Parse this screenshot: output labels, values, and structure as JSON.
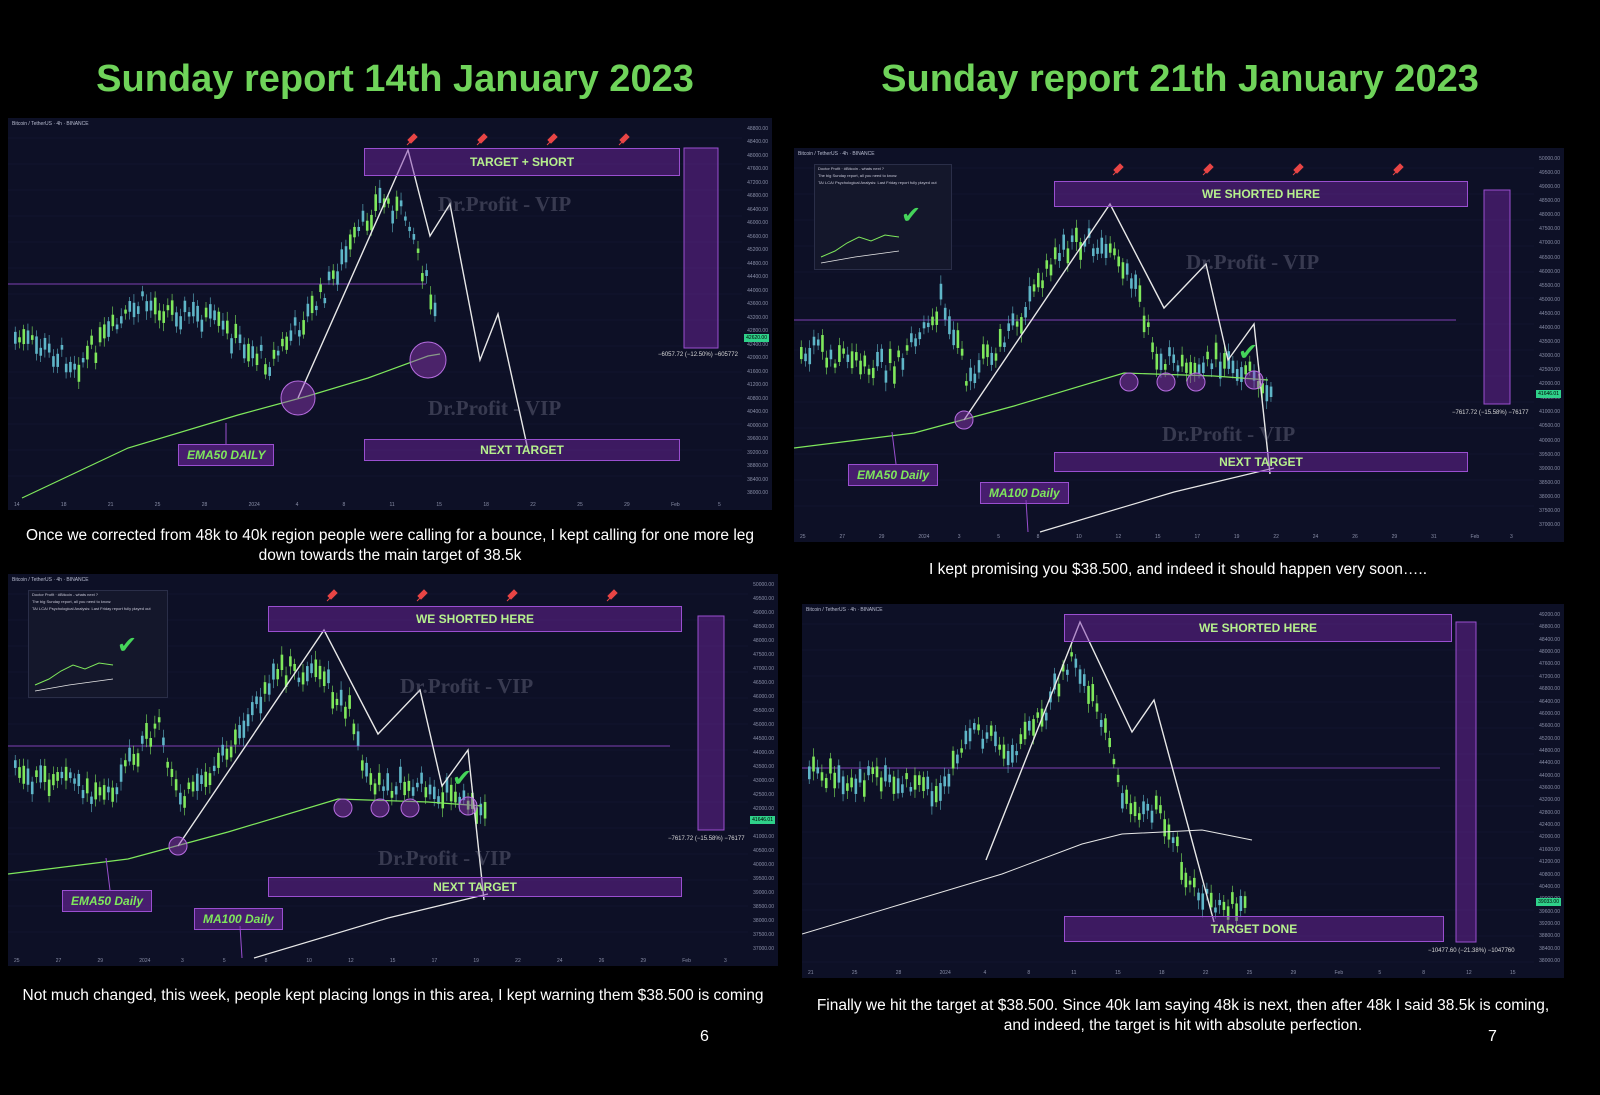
{
  "page": {
    "heading_left": "Sunday report 14th January 2023",
    "heading_right": "Sunday report 21th January 2023",
    "page_number_left": "6",
    "page_number_right": "7"
  },
  "captions": {
    "top_left": "Once we corrected from 48k to 40k region people were calling for a bounce, I kept calling for one more leg down towards the main target of 38.5k",
    "top_right": "I kept promising you $38.500, and indeed it should happen very soon…..",
    "bottom_left": "Not much changed, this week, people kept placing longs in this area, I kept warning them $38.500 is coming",
    "bottom_right": "Finally we hit the target at $38.500. Since 40k Iam saying 48k is next, then after 48k I said 38.5k is coming, and indeed, the target is hit with absolute perfection."
  },
  "colors": {
    "heading": "#6fd35a",
    "panel_bg": "#0d1026",
    "zone_fill": "#7828aa",
    "zone_text": "#b6f08d",
    "candle_up": "#7fe85c",
    "candle_down": "#5fb6c8",
    "ema_line": "#7fe85c",
    "path_line": "#e8e8e8"
  },
  "chart_data": [
    {
      "id": "chart1",
      "type": "line",
      "header": "Bitcoin / TetherUS · 4h · BINANCE",
      "watermark": "Dr.Profit - VIP",
      "zones": {
        "top": "TARGET + SHORT",
        "bottom": "NEXT TARGET"
      },
      "tags": [
        "EMA50 DAILY"
      ],
      "measure_label": "−6057.72 (−12.50%) −605772",
      "price_badge": "42620.00",
      "y_ticks": [
        "48800.00",
        "48400.00",
        "48000.00",
        "47600.00",
        "47200.00",
        "46800.00",
        "46400.00",
        "46000.00",
        "45600.00",
        "45200.00",
        "44800.00",
        "44400.00",
        "44000.00",
        "43600.00",
        "43200.00",
        "42800.00",
        "42400.00",
        "42000.00",
        "41600.00",
        "41200.00",
        "40800.00",
        "40400.00",
        "40000.00",
        "39600.00",
        "39200.00",
        "38800.00",
        "38400.00",
        "38000.00"
      ],
      "x_ticks": [
        "14",
        "18",
        "21",
        "25",
        "28",
        "2024",
        "4",
        "8",
        "11",
        "15",
        "18",
        "22",
        "25",
        "29",
        "Feb",
        "5"
      ],
      "ylim": [
        38000,
        48800
      ]
    },
    {
      "id": "chart2",
      "type": "line",
      "header": "Bitcoin / TetherUS · 4h · BINANCE",
      "watermark": "Dr.Profit - VIP",
      "zones": {
        "top": "WE SHORTED HERE",
        "bottom": "NEXT TARGET"
      },
      "tags": [
        "EMA50 Daily",
        "MA100 Daily"
      ],
      "measure_label": "−7617.72 (−15.58%) −76177",
      "price_badge": "41646.01",
      "y_ticks": [
        "50000.00",
        "49500.00",
        "49000.00",
        "48500.00",
        "48000.00",
        "47500.00",
        "47000.00",
        "46500.00",
        "46000.00",
        "45500.00",
        "45000.00",
        "44500.00",
        "44000.00",
        "43500.00",
        "43000.00",
        "42500.00",
        "42000.00",
        "41500.00",
        "41000.00",
        "40500.00",
        "40000.00",
        "39500.00",
        "39000.00",
        "38500.00",
        "38000.00",
        "37500.00",
        "37000.00"
      ],
      "x_ticks": [
        "25",
        "27",
        "29",
        "2024",
        "3",
        "5",
        "8",
        "10",
        "12",
        "15",
        "17",
        "19",
        "22",
        "24",
        "26",
        "29",
        "31",
        "Feb",
        "3"
      ],
      "ylim": [
        37000,
        50000
      ]
    },
    {
      "id": "chart3",
      "type": "line",
      "header": "Bitcoin / TetherUS · 4h · BINANCE",
      "watermark": "Dr.Profit - VIP",
      "zones": {
        "top": "WE SHORTED HERE",
        "bottom": "NEXT TARGET"
      },
      "tags": [
        "EMA50 Daily",
        "MA100 Daily"
      ],
      "measure_label": "−7617.72 (−15.58%) −76177",
      "price_badge": "41646.01",
      "y_ticks": [
        "50000.00",
        "49500.00",
        "49000.00",
        "48500.00",
        "48000.00",
        "47500.00",
        "47000.00",
        "46500.00",
        "46000.00",
        "45500.00",
        "45000.00",
        "44500.00",
        "44000.00",
        "43500.00",
        "43000.00",
        "42500.00",
        "42000.00",
        "41500.00",
        "41000.00",
        "40500.00",
        "40000.00",
        "39500.00",
        "39000.00",
        "38500.00",
        "38000.00",
        "37500.00",
        "37000.00"
      ],
      "x_ticks": [
        "25",
        "27",
        "29",
        "2024",
        "3",
        "5",
        "8",
        "10",
        "12",
        "15",
        "17",
        "19",
        "22",
        "24",
        "26",
        "29",
        "Feb",
        "3"
      ],
      "ylim": [
        37000,
        50000
      ]
    },
    {
      "id": "chart4",
      "type": "line",
      "header": "Bitcoin / TetherUS · 4h · BINANCE",
      "zones": {
        "top": "WE SHORTED HERE",
        "bottom": "TARGET DONE"
      },
      "tags": [],
      "measure_label": "−10477.60 (−21.38%) −1047760",
      "price_badge": "39033.00",
      "y_ticks": [
        "49200.00",
        "48800.00",
        "48400.00",
        "48000.00",
        "47600.00",
        "47200.00",
        "46800.00",
        "46400.00",
        "46000.00",
        "45600.00",
        "45200.00",
        "44800.00",
        "44400.00",
        "44000.00",
        "43600.00",
        "43200.00",
        "42800.00",
        "42400.00",
        "42000.00",
        "41600.00",
        "41200.00",
        "40800.00",
        "40400.00",
        "40000.00",
        "39600.00",
        "39200.00",
        "38800.00",
        "38400.00",
        "38000.00"
      ],
      "x_ticks": [
        "21",
        "25",
        "28",
        "2024",
        "4",
        "8",
        "11",
        "15",
        "18",
        "22",
        "25",
        "29",
        "Feb",
        "5",
        "8",
        "12",
        "15"
      ],
      "ylim": [
        38000,
        49200
      ]
    }
  ]
}
